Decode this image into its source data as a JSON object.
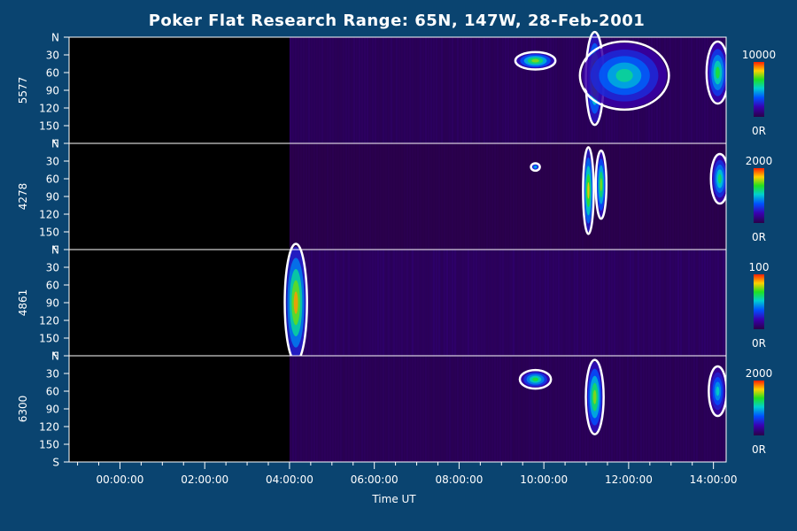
{
  "chart_data": {
    "type": "heatmap",
    "title": "Poker Flat Research Range: 65N, 147W, 28-Feb-2001",
    "xlabel": "Time UT",
    "x_tick_labels": [
      "00:00:00",
      "02:00:00",
      "04:00:00",
      "06:00:00",
      "08:00:00",
      "10:00:00",
      "12:00:00",
      "14:00:00"
    ],
    "x_tick_hours": [
      0,
      2,
      4,
      6,
      8,
      10,
      12,
      14
    ],
    "x_range_hours": [
      -1.2,
      14.3
    ],
    "y_tick_labels": [
      "N",
      "30",
      "60",
      "90",
      "120",
      "150",
      "S"
    ],
    "y_tick_values": [
      0,
      30,
      60,
      90,
      120,
      150,
      180
    ],
    "y_range": [
      0,
      180
    ],
    "colorbar_min_label": "0R",
    "panels": [
      {
        "wavelength": "5577",
        "colorbar_max_label": "10000",
        "data_start_hour": 4.0,
        "noise": 0.35,
        "features": [
          {
            "t": 9.8,
            "angle": 40,
            "dt": 0.45,
            "da": 14,
            "value": 0.85
          },
          {
            "t": 11.2,
            "angle": 70,
            "dt": 0.2,
            "da": 75,
            "value": 0.9
          },
          {
            "t": 11.9,
            "angle": 65,
            "dt": 1.0,
            "da": 55,
            "value": 0.65
          },
          {
            "t": 14.1,
            "angle": 60,
            "dt": 0.25,
            "da": 50,
            "value": 0.75
          }
        ]
      },
      {
        "wavelength": "4278",
        "colorbar_max_label": "2000",
        "data_start_hour": 4.0,
        "noise": 0.15,
        "features": [
          {
            "t": 9.8,
            "angle": 40,
            "dt": 0.1,
            "da": 6,
            "value": 0.6
          },
          {
            "t": 11.05,
            "angle": 80,
            "dt": 0.12,
            "da": 70,
            "value": 0.95
          },
          {
            "t": 11.35,
            "angle": 70,
            "dt": 0.12,
            "da": 55,
            "value": 0.85
          },
          {
            "t": 14.15,
            "angle": 60,
            "dt": 0.2,
            "da": 40,
            "value": 0.7
          }
        ]
      },
      {
        "wavelength": "4861",
        "colorbar_max_label": "100",
        "data_start_hour": 4.0,
        "noise": 0.45,
        "features": [
          {
            "t": 4.15,
            "angle": 90,
            "dt": 0.25,
            "da": 95,
            "value": 1.0
          }
        ]
      },
      {
        "wavelength": "6300",
        "colorbar_max_label": "2000",
        "data_start_hour": 4.0,
        "noise": 0.3,
        "features": [
          {
            "t": 9.8,
            "angle": 40,
            "dt": 0.35,
            "da": 15,
            "value": 0.75
          },
          {
            "t": 11.2,
            "angle": 70,
            "dt": 0.2,
            "da": 60,
            "value": 0.85
          },
          {
            "t": 14.1,
            "angle": 60,
            "dt": 0.2,
            "da": 40,
            "value": 0.6
          }
        ]
      }
    ],
    "grid": false
  }
}
